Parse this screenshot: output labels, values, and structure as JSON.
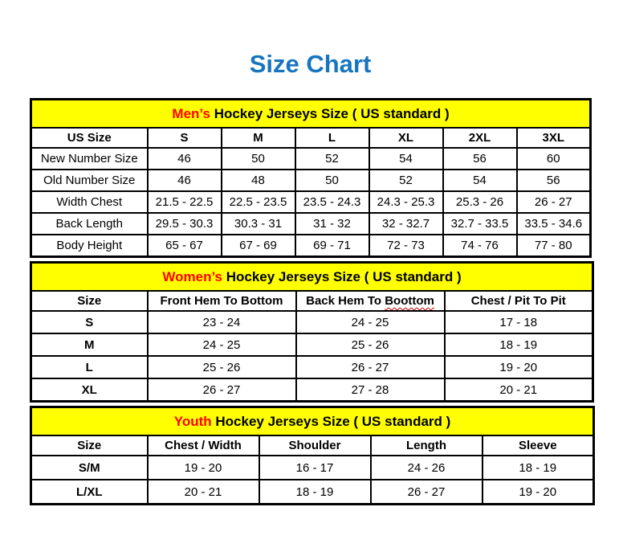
{
  "page_title": "Size Chart",
  "colors": {
    "title_blue": "#1775C0",
    "band_yellow": "#FFFF00",
    "accent_red": "#FF0000",
    "squiggle_red": "#C00000",
    "border_black": "#000000"
  },
  "tables": [
    {
      "id": "mens",
      "title_accent": "Men’s",
      "title_rest": " Hockey Jerseys Size ( US standard )",
      "columns": [
        "US Size",
        "S",
        "M",
        "L",
        "XL",
        "2XL",
        "3XL"
      ],
      "rows": [
        {
          "label": "New Number Size",
          "values": [
            "46",
            "50",
            "52",
            "54",
            "56",
            "60"
          ]
        },
        {
          "label": "Old Number Size",
          "values": [
            "46",
            "48",
            "50",
            "52",
            "54",
            "56"
          ]
        },
        {
          "label": "Width Chest",
          "values": [
            "21.5 - 22.5",
            "22.5 - 23.5",
            "23.5 - 24.3",
            "24.3 - 25.3",
            "25.3 - 26",
            "26 - 27"
          ]
        },
        {
          "label": "Back Length",
          "values": [
            "29.5 - 30.3",
            "30.3 - 31",
            "31 - 32",
            "32 - 32.7",
            "32.7 - 33.5",
            "33.5 - 34.6"
          ]
        },
        {
          "label": "Body Height",
          "values": [
            "65 - 67",
            "67 - 69",
            "69 - 71",
            "72 - 73",
            "74 - 76",
            "77 - 80"
          ]
        }
      ]
    },
    {
      "id": "womens",
      "title_accent": "Women’s",
      "title_rest": " Hockey Jerseys Size ( US standard )",
      "columns": [
        "Size",
        "Front Hem To Bottom",
        "Back Hem To Boottom",
        "Chest / Pit To Pit"
      ],
      "misspell": {
        "col": 2,
        "prefix": "Back Hem To ",
        "word": "Boottom"
      },
      "rows": [
        {
          "label": "S",
          "values": [
            "23 - 24",
            "24 - 25",
            "17 - 18"
          ]
        },
        {
          "label": "M",
          "values": [
            "24 - 25",
            "25 - 26",
            "18 - 19"
          ]
        },
        {
          "label": "L",
          "values": [
            "25 - 26",
            "26 - 27",
            "19 - 20"
          ]
        },
        {
          "label": "XL",
          "values": [
            "26 - 27",
            "27 - 28",
            "20 - 21"
          ]
        }
      ]
    },
    {
      "id": "youth",
      "title_accent": "Youth",
      "title_rest": " Hockey Jerseys Size ( US standard )",
      "columns": [
        "Size",
        "Chest / Width",
        "Shoulder",
        "Length",
        "Sleeve"
      ],
      "rows": [
        {
          "label": "S/M",
          "values": [
            "19 - 20",
            "16 - 17",
            "24 - 26",
            "18 - 19"
          ]
        },
        {
          "label": "L/XL",
          "values": [
            "20 - 21",
            "18 - 19",
            "26 - 27",
            "19 - 20"
          ]
        }
      ]
    }
  ]
}
